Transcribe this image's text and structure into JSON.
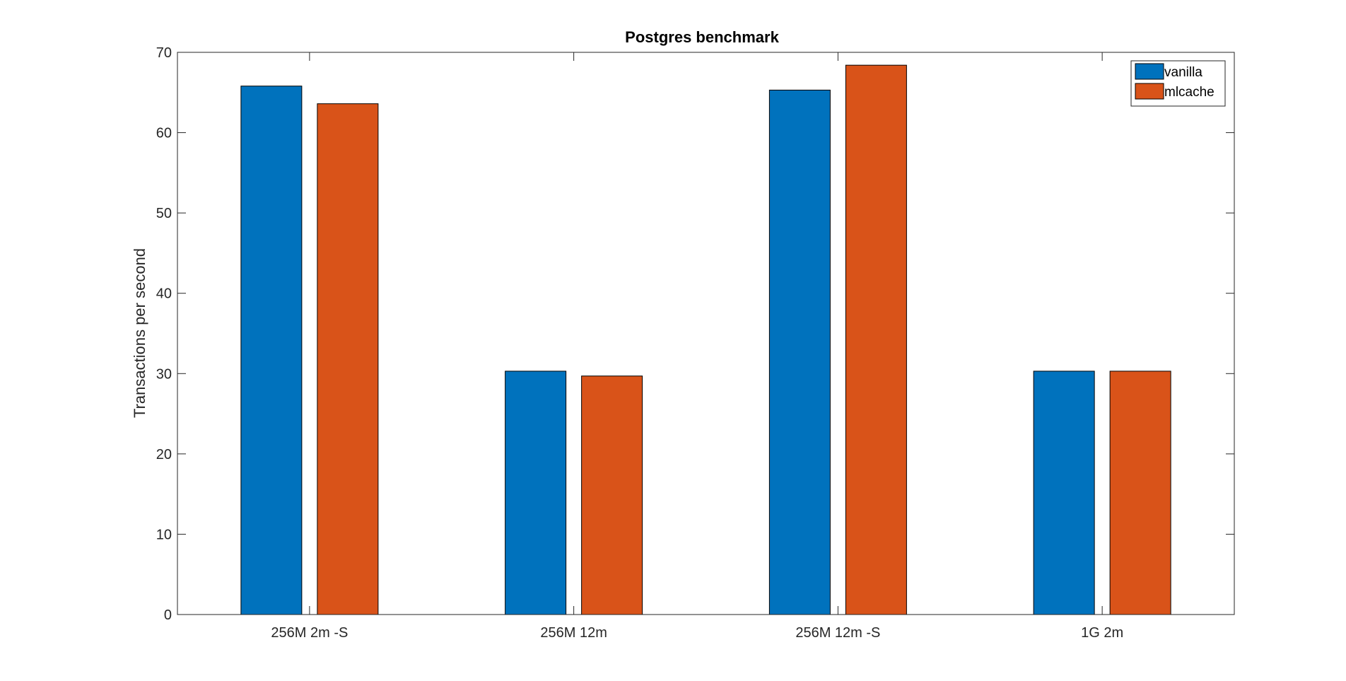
{
  "chart_data": {
    "type": "bar",
    "title": "Postgres benchmark",
    "xlabel": "",
    "ylabel": "Transactions per second",
    "categories": [
      "256M 2m -S",
      "256M 12m",
      "256M 12m -S",
      "1G 2m"
    ],
    "series": [
      {
        "name": "vanilla",
        "color": "#0072BD",
        "values": [
          65.8,
          30.3,
          65.3,
          30.3
        ]
      },
      {
        "name": "mlcache",
        "color": "#D95319",
        "values": [
          63.6,
          29.7,
          68.4,
          30.3
        ]
      }
    ],
    "ylim": [
      0,
      70
    ],
    "yticks": [
      0,
      10,
      20,
      30,
      40,
      50,
      60,
      70
    ],
    "legend_position": "top-right",
    "grid": false
  }
}
